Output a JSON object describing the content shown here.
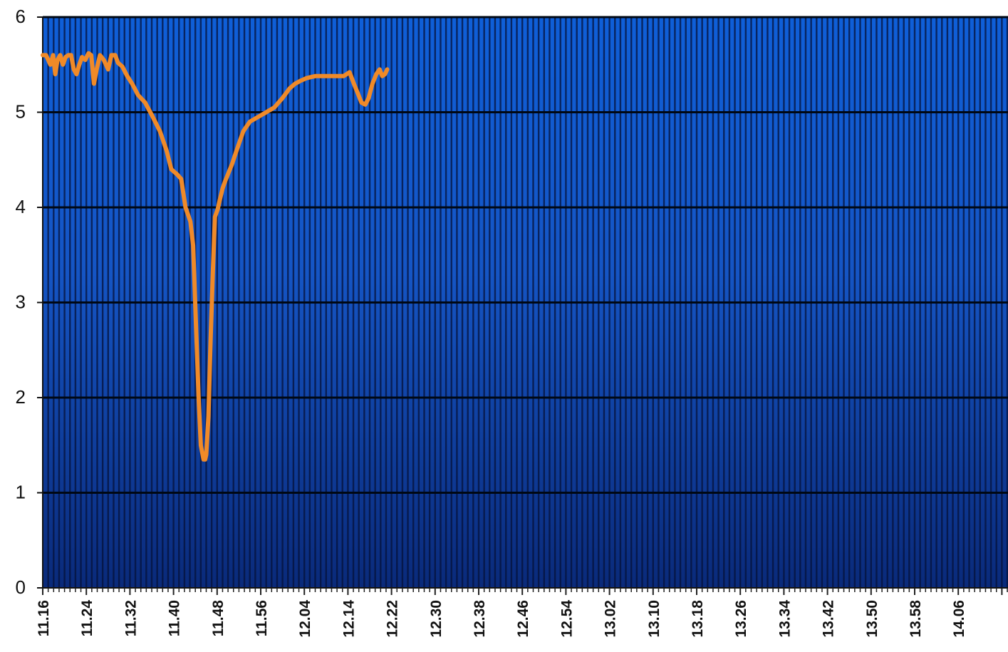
{
  "chart_data": {
    "type": "line",
    "title": "",
    "xlabel": "",
    "ylabel": "",
    "ylim": [
      0,
      6
    ],
    "y_ticks": [
      "0",
      "1",
      "2",
      "3",
      "4",
      "5",
      "6"
    ],
    "x_tick_labels": [
      "11.16",
      "11.24",
      "11.32",
      "11.40",
      "11.48",
      "11.56",
      "12.04",
      "12.14",
      "12.22",
      "12.30",
      "12.38",
      "12.46",
      "12.54",
      "13.02",
      "13.10",
      "13.18",
      "13.26",
      "13.34",
      "13.42",
      "13.50",
      "13.58",
      "14.06"
    ],
    "grid": true,
    "legend": "none",
    "background_gradient": [
      "#0f5fd8",
      "#0a2a7a"
    ],
    "line_color": "#f08a28",
    "series": [
      {
        "x_index": [
          0,
          0.6,
          1,
          1.4,
          1.9,
          2.3,
          2.7,
          3.2,
          3.7,
          4.2,
          4.7,
          5.2,
          5.7,
          6.2,
          6.7,
          7.2,
          7.8,
          8.4,
          8.9,
          9.4,
          9.9,
          10.5,
          11.2,
          11.6,
          12,
          12.6,
          13.3,
          13.8,
          14.6,
          15.5,
          16.4,
          17.5,
          18.8,
          20.2,
          21.5,
          22.7,
          23.6,
          24.6,
          25.4,
          26.2,
          27.1,
          27.6,
          28.6,
          29,
          29.5,
          29.8,
          30,
          30.4,
          30.8,
          31.2,
          31.6,
          32.1,
          32.5,
          33,
          33.5,
          34,
          34.7,
          35.7,
          36.8,
          38,
          39.5,
          41,
          42.5,
          44,
          45.3,
          46.3,
          47.3,
          48.5,
          50,
          52,
          53.6,
          55.2,
          56.3,
          57.1,
          57.8,
          58.5,
          59.2,
          59.8,
          60.5,
          61.2,
          61.8,
          62.3,
          62.8,
          63.2
        ],
        "values": [
          5.6,
          5.6,
          5.55,
          5.5,
          5.6,
          5.4,
          5.55,
          5.6,
          5.5,
          5.58,
          5.6,
          5.6,
          5.45,
          5.4,
          5.5,
          5.58,
          5.55,
          5.62,
          5.6,
          5.3,
          5.45,
          5.6,
          5.55,
          5.5,
          5.45,
          5.6,
          5.6,
          5.52,
          5.48,
          5.38,
          5.3,
          5.18,
          5.1,
          4.95,
          4.8,
          4.6,
          4.4,
          4.35,
          4.3,
          4.0,
          3.85,
          3.6,
          2.0,
          1.5,
          1.35,
          1.35,
          1.4,
          1.8,
          2.6,
          3.3,
          3.9,
          3.98,
          4.08,
          4.2,
          4.28,
          4.35,
          4.45,
          4.62,
          4.8,
          4.9,
          4.95,
          5.0,
          5.05,
          5.15,
          5.25,
          5.3,
          5.33,
          5.36,
          5.38,
          5.38,
          5.38,
          5.38,
          5.42,
          5.3,
          5.2,
          5.1,
          5.08,
          5.15,
          5.3,
          5.4,
          5.45,
          5.38,
          5.4,
          5.45
        ]
      }
    ]
  }
}
